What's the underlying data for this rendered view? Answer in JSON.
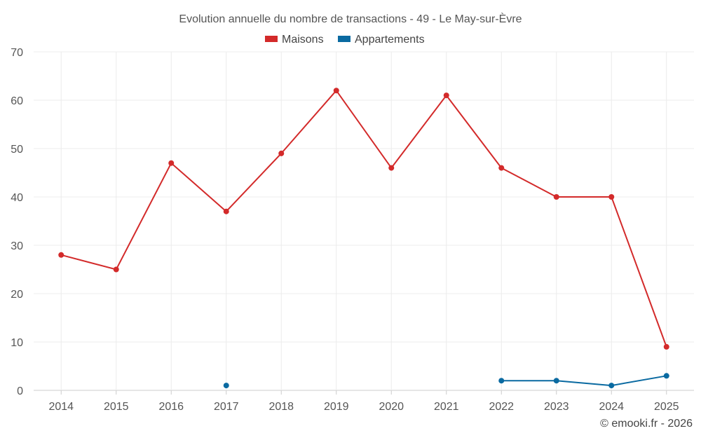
{
  "chart_data": {
    "type": "line",
    "title": "Evolution annuelle du nombre de transactions - 49 - Le May-sur-Èvre",
    "categories": [
      "2014",
      "2015",
      "2016",
      "2017",
      "2018",
      "2019",
      "2020",
      "2021",
      "2022",
      "2023",
      "2024",
      "2025"
    ],
    "ylim": [
      0,
      70
    ],
    "yticks": [
      0,
      10,
      20,
      30,
      40,
      50,
      60,
      70
    ],
    "grid": true,
    "legend_position": "top-center",
    "series": [
      {
        "name": "Maisons",
        "color": "#d32a2a",
        "values": [
          28,
          25,
          47,
          37,
          49,
          62,
          46,
          61,
          46,
          40,
          40,
          9
        ]
      },
      {
        "name": "Appartements",
        "color": "#0a6aa1",
        "values": [
          null,
          null,
          null,
          1,
          null,
          null,
          null,
          null,
          2,
          2,
          1,
          3
        ]
      }
    ],
    "xlabel": "",
    "ylabel": ""
  },
  "footer": "© emooki.fr - 2026"
}
